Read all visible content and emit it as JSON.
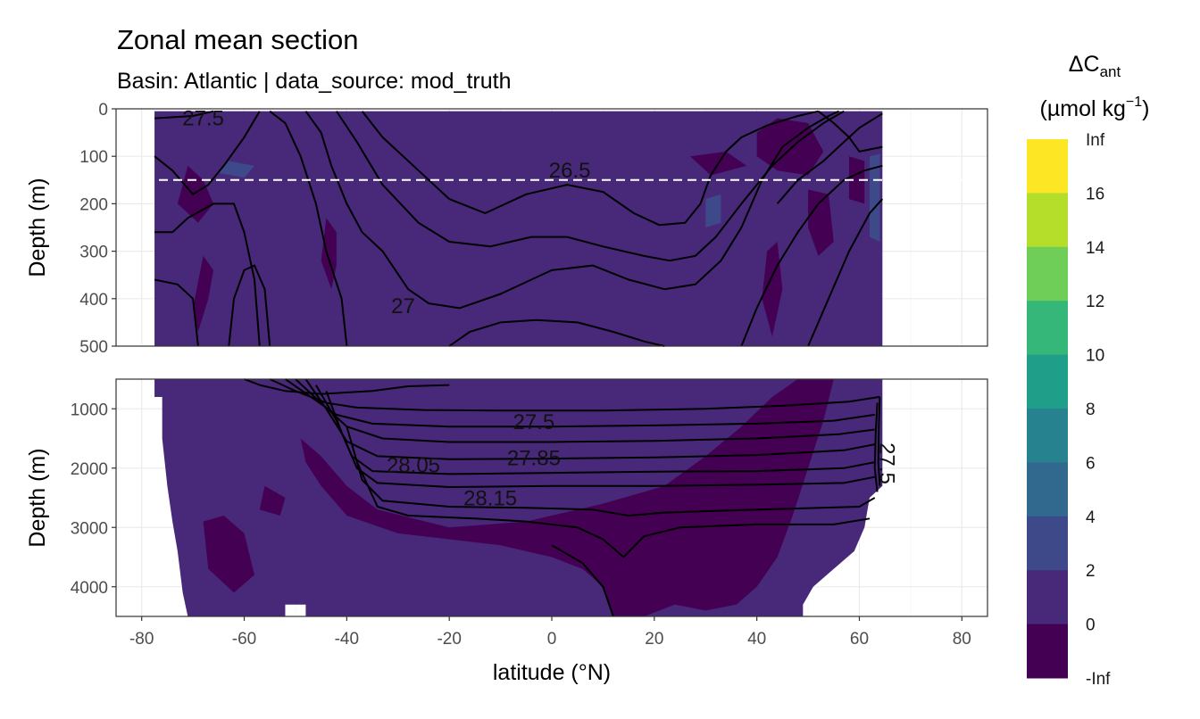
{
  "chart_data": {
    "type": "heatmap",
    "title": "Zonal mean section",
    "subtitle": "Basin: Atlantic | data_source: mod_truth",
    "xlabel": "latitude (°N)",
    "ylabel": "Depth (m)",
    "xlim": [
      -85,
      85
    ],
    "x_ticks": [
      "-80",
      "-60",
      "-40",
      "-20",
      "0",
      "20",
      "40",
      "60",
      "80"
    ],
    "data_extent_lat": [
      -77.5,
      64.5
    ],
    "grid": true,
    "panels": [
      {
        "name": "upper",
        "ylim": [
          0,
          500
        ],
        "y_ticks": [
          "0",
          "100",
          "200",
          "300",
          "400",
          "500"
        ],
        "y_tick_values": [
          0,
          100,
          200,
          300,
          400,
          500
        ],
        "reference_line_depth": 150,
        "contour_labels": [
          {
            "text": "27.5",
            "lat": -68,
            "depth": 20
          },
          {
            "text": "26.5",
            "lat": 3.5,
            "depth": 130
          },
          {
            "text": "27",
            "lat": -29,
            "depth": 415
          }
        ]
      },
      {
        "name": "lower",
        "ylim": [
          500,
          4500
        ],
        "y_ticks": [
          "1000",
          "2000",
          "3000",
          "4000"
        ],
        "y_tick_values": [
          1000,
          2000,
          3000,
          4000
        ],
        "contour_labels": [
          {
            "text": "27.5",
            "lat": -3.5,
            "depth": 1220
          },
          {
            "text": "27.85",
            "lat": -3.5,
            "depth": 1830
          },
          {
            "text": "28.05",
            "lat": -27,
            "depth": 1950
          },
          {
            "text": "28.15",
            "lat": -12,
            "depth": 2510
          },
          {
            "text": "27.5",
            "lat": 64,
            "depth": 1800
          }
        ]
      }
    ],
    "legend": {
      "title_main": "ΔC",
      "title_sub": "ant",
      "unit_main": "(µmol kg",
      "unit_sup": "−1",
      "unit_close": ")",
      "labels": [
        "Inf",
        "16",
        "14",
        "12",
        "10",
        "8",
        "6",
        "4",
        "2",
        "0",
        "-Inf"
      ],
      "colors": [
        "#fde725",
        "#b5de2b",
        "#6ece58",
        "#35b779",
        "#1f9e89",
        "#26828e",
        "#31688e",
        "#3e4989",
        "#482878",
        "#440154"
      ],
      "placement": "right"
    },
    "dominant_fill": "#482878",
    "low_fill": "#440154",
    "high_fill": "#3e4989"
  }
}
